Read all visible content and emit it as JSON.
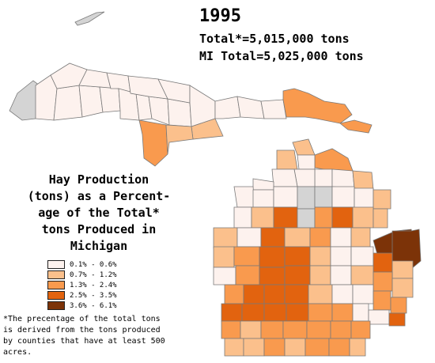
{
  "header": {
    "year": "1995",
    "total_line": "Total*=5,015,000 tons",
    "mi_total_line": "MI Total=5,025,000 tons"
  },
  "map_title": {
    "line1": "Hay Production",
    "line2": "(tons) as a Percent-",
    "line3": "age of the Total*",
    "line4": "tons Produced in",
    "line5": "Michigan"
  },
  "legend": {
    "items": [
      {
        "label": "0.1% - 0.6%",
        "color": "#fdf2ee"
      },
      {
        "label": "0.7% - 1.2%",
        "color": "#fbc08c"
      },
      {
        "label": "1.3% - 2.4%",
        "color": "#f99a4e"
      },
      {
        "label": "2.5% - 3.5%",
        "color": "#e2630f"
      },
      {
        "label": "3.6% - 6.1%",
        "color": "#7c3308"
      }
    ],
    "no_data_color": "#d4d4d4"
  },
  "footnote": {
    "line1": "*The precentage of the total tons",
    "line2": "is derived from the tons produced",
    "line3": "by counties that have at least 500",
    "line4": "acres."
  }
}
